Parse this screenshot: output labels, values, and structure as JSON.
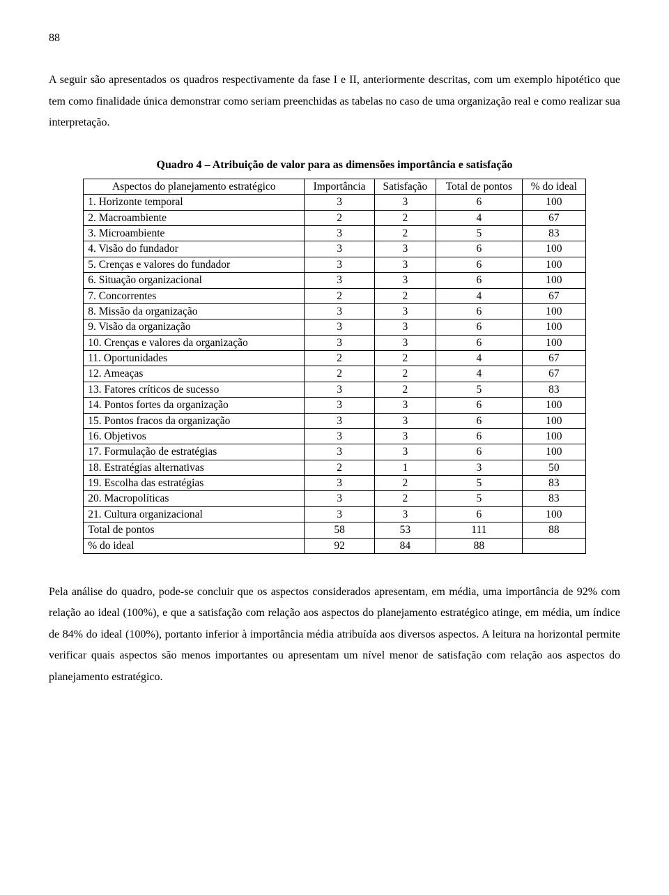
{
  "page_number": "88",
  "intro_paragraph": "A seguir são apresentados os quadros respectivamente da fase I e II, anteriormente descritas, com um exemplo hipotético que tem como finalidade única demonstrar como seriam preenchidas as tabelas no caso de uma organização real e como realizar sua interpretação.",
  "table": {
    "title": "Quadro 4 – Atribuição de valor para as dimensões importância e satisfação",
    "headers": {
      "aspect": "Aspectos do planejamento estratégico",
      "importancia": "Importância",
      "satisfacao": "Satisfação",
      "total": "Total de pontos",
      "ideal": "% do ideal"
    },
    "rows": [
      {
        "label": "1. Horizonte temporal",
        "imp": "3",
        "sat": "3",
        "tot": "6",
        "pct": "100"
      },
      {
        "label": "2. Macroambiente",
        "imp": "2",
        "sat": "2",
        "tot": "4",
        "pct": "67"
      },
      {
        "label": "3. Microambiente",
        "imp": "3",
        "sat": "2",
        "tot": "5",
        "pct": "83"
      },
      {
        "label": "4. Visão do fundador",
        "imp": "3",
        "sat": "3",
        "tot": "6",
        "pct": "100"
      },
      {
        "label": "5. Crenças e valores do fundador",
        "imp": "3",
        "sat": "3",
        "tot": "6",
        "pct": "100"
      },
      {
        "label": "6. Situação organizacional",
        "imp": "3",
        "sat": "3",
        "tot": "6",
        "pct": "100"
      },
      {
        "label": "7. Concorrentes",
        "imp": "2",
        "sat": "2",
        "tot": "4",
        "pct": "67"
      },
      {
        "label": "8. Missão da organização",
        "imp": "3",
        "sat": "3",
        "tot": "6",
        "pct": "100"
      },
      {
        "label": "9. Visão da organização",
        "imp": "3",
        "sat": "3",
        "tot": "6",
        "pct": "100"
      },
      {
        "label": "10. Crenças e valores da organização",
        "imp": "3",
        "sat": "3",
        "tot": "6",
        "pct": "100"
      },
      {
        "label": "11. Oportunidades",
        "imp": "2",
        "sat": "2",
        "tot": "4",
        "pct": "67"
      },
      {
        "label": "12. Ameaças",
        "imp": "2",
        "sat": "2",
        "tot": "4",
        "pct": "67"
      },
      {
        "label": "13. Fatores críticos de sucesso",
        "imp": "3",
        "sat": "2",
        "tot": "5",
        "pct": "83"
      },
      {
        "label": "14. Pontos fortes da organização",
        "imp": "3",
        "sat": "3",
        "tot": "6",
        "pct": "100"
      },
      {
        "label": "15. Pontos fracos da organização",
        "imp": "3",
        "sat": "3",
        "tot": "6",
        "pct": "100"
      },
      {
        "label": "16. Objetivos",
        "imp": "3",
        "sat": "3",
        "tot": "6",
        "pct": "100"
      },
      {
        "label": "17. Formulação de estratégias",
        "imp": "3",
        "sat": "3",
        "tot": "6",
        "pct": "100"
      },
      {
        "label": "18. Estratégias alternativas",
        "imp": "2",
        "sat": "1",
        "tot": "3",
        "pct": "50"
      },
      {
        "label": "19. Escolha das estratégias",
        "imp": "3",
        "sat": "2",
        "tot": "5",
        "pct": "83"
      },
      {
        "label": "20. Macropolíticas",
        "imp": "3",
        "sat": "2",
        "tot": "5",
        "pct": "83"
      },
      {
        "label": "21. Cultura organizacional",
        "imp": "3",
        "sat": "3",
        "tot": "6",
        "pct": "100"
      }
    ],
    "footer": [
      {
        "label": "Total de pontos",
        "imp": "58",
        "sat": "53",
        "tot": "111",
        "pct": "88"
      },
      {
        "label": "% do ideal",
        "imp": "92",
        "sat": "84",
        "tot": "88",
        "pct": ""
      }
    ]
  },
  "conclusion_paragraph": "Pela análise do quadro, pode-se concluir que os aspectos considerados apresentam, em média, uma importância de 92% com relação ao ideal (100%), e que a satisfação com relação aos aspectos do planejamento estratégico atinge, em média, um índice de 84% do ideal (100%), portanto inferior à importância média atribuída aos diversos aspectos. A leitura na horizontal permite verificar quais aspectos são menos importantes ou apresentam um nível menor de satisfação com relação aos aspectos do planejamento estratégico."
}
